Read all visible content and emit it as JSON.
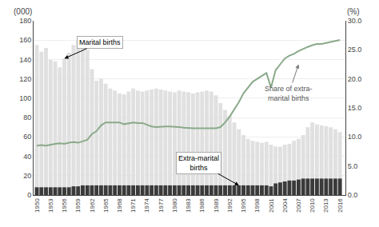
{
  "chart_data": {
    "type": "bar",
    "x": [
      1950,
      1951,
      1952,
      1953,
      1954,
      1955,
      1956,
      1957,
      1958,
      1959,
      1960,
      1961,
      1962,
      1963,
      1964,
      1965,
      1966,
      1967,
      1968,
      1969,
      1970,
      1971,
      1972,
      1973,
      1974,
      1975,
      1976,
      1977,
      1978,
      1979,
      1980,
      1981,
      1982,
      1983,
      1984,
      1985,
      1986,
      1987,
      1988,
      1989,
      1990,
      1991,
      1992,
      1993,
      1994,
      1995,
      1996,
      1997,
      1998,
      1999,
      2000,
      2001,
      2002,
      2003,
      2004,
      2005,
      2006,
      2007,
      2008,
      2009,
      2010,
      2011,
      2012,
      2013,
      2014,
      2015,
      2016
    ],
    "series": [
      {
        "type": "bar",
        "color": "#e0e0e0",
        "values": [
          155,
          148,
          152,
          140,
          138,
          132,
          141,
          147,
          155,
          160,
          158,
          150,
          130,
          118,
          120,
          115,
          110,
          108,
          105,
          104,
          107,
          110,
          108,
          107,
          108,
          109,
          110,
          109,
          108,
          107,
          106,
          108,
          107,
          106,
          105,
          106,
          107,
          108,
          107,
          103,
          95,
          88,
          82,
          75,
          68,
          62,
          58,
          56,
          55,
          54,
          55,
          52,
          50,
          50,
          52,
          53,
          56,
          58,
          62,
          70,
          75,
          73,
          72,
          71,
          70,
          68,
          65
        ]
      },
      {
        "type": "bar",
        "color": "#3a3a3a",
        "values": [
          8,
          8,
          8,
          8,
          8,
          8,
          8,
          8,
          9,
          9,
          10,
          10,
          10,
          10,
          10,
          10,
          10,
          10,
          10,
          10,
          10,
          10,
          10,
          10,
          10,
          10,
          10,
          10,
          10,
          10,
          10,
          10,
          10,
          10,
          10,
          10,
          10,
          10,
          10,
          10,
          10,
          10,
          10,
          10,
          10,
          10,
          10,
          10,
          10,
          10,
          10,
          9,
          12,
          13,
          14,
          15,
          15,
          16,
          17,
          17,
          17,
          17,
          17,
          17,
          17,
          17,
          17
        ]
      },
      {
        "type": "line",
        "color": "#8aaa8a",
        "axis": "y2",
        "values": [
          8.5,
          8.6,
          8.5,
          8.7,
          8.8,
          8.9,
          8.8,
          9.0,
          9.1,
          9.0,
          9.2,
          9.5,
          10.5,
          11.0,
          12.0,
          12.5,
          12.5,
          12.5,
          12.5,
          12.2,
          12.3,
          12.5,
          12.4,
          12.4,
          12.1,
          11.8,
          11.7,
          11.8,
          11.8,
          11.8,
          11.8,
          11.7,
          11.6,
          11.5,
          11.5,
          11.5,
          11.5,
          11.5,
          11.5,
          11.5,
          11.7,
          12.5,
          13.5,
          14.8,
          16.0,
          17.5,
          18.5,
          19.5,
          20.0,
          20.5,
          21.0,
          18.5,
          21.5,
          22.5,
          23.5,
          24.0,
          24.3,
          24.8,
          25.2,
          25.5,
          25.8,
          26.0,
          26.0,
          26.2,
          26.3,
          26.5,
          26.7
        ]
      }
    ],
    "stacked": false,
    "xlim": [
      1949.3,
      2017.2
    ],
    "xticks": [
      1950,
      1953,
      1956,
      1959,
      1962,
      1965,
      1968,
      1971,
      1974,
      1977,
      1980,
      1983,
      1986,
      1989,
      1992,
      1995,
      1998,
      2001,
      2004,
      2007,
      2010,
      2013,
      2016
    ],
    "ylim": [
      0,
      180
    ],
    "yticks": [
      0,
      20,
      40,
      60,
      80,
      100,
      120,
      140,
      160,
      180
    ],
    "y2lim": [
      0,
      30
    ],
    "y2ticks": [
      {
        "value": 0,
        "label": "0.0"
      },
      {
        "value": 5,
        "label": "5.0"
      },
      {
        "value": 10,
        "label": "10.0"
      },
      {
        "value": 15,
        "label": "15.0"
      },
      {
        "value": 20,
        "label": "20.0"
      },
      {
        "value": 25,
        "label": "25.0"
      },
      {
        "value": 30,
        "label": "30.0"
      }
    ],
    "ylabel": "(000)",
    "y2label": "(%)",
    "grid": true,
    "annotations": [
      {
        "text": "Marital births",
        "x": 1956,
        "y": 141
      },
      {
        "text": "Extra-marital\nbirths",
        "x": 1994,
        "y": 10
      },
      {
        "text": "Share of extra-\nmarital births",
        "x": 2007,
        "y": 22.5,
        "axis": "y2"
      }
    ]
  }
}
